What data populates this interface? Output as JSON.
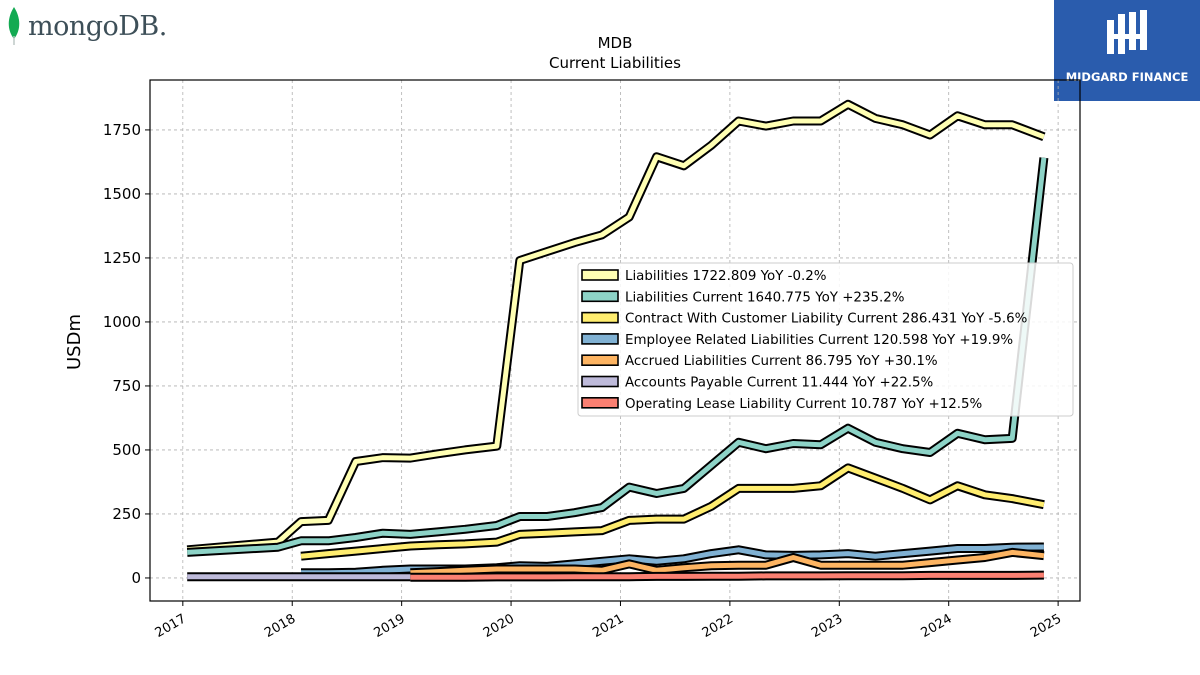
{
  "branding": {
    "left_logo_text": "mongoDB.",
    "right_logo_text": "MIDGARD FINANCE"
  },
  "colors": {
    "Liabilities": "#ffffb3",
    "Liabilities Current": "#8dd3c7",
    "Contract With Customer Liability Current": "#ffed6f",
    "Employee Related Liabilities Current": "#80b1d3",
    "Accrued Liabilities Current": "#fdb462",
    "Accounts Payable Current": "#bebada",
    "Operating Lease Liability Current": "#fb8072"
  },
  "chart_data": {
    "type": "line",
    "title": "MDB",
    "subtitle": "Current  Liabilities",
    "ylabel": "USDm",
    "xlabel": "",
    "xlim": [
      2016.7,
      2025.2
    ],
    "ylim": [
      -90,
      1945
    ],
    "x_ticks": [
      "2017",
      "2018",
      "2019",
      "2020",
      "2021",
      "2022",
      "2023",
      "2024",
      "2025"
    ],
    "y_ticks": [
      "0",
      "250",
      "500",
      "750",
      "1000",
      "1250",
      "1500",
      "1750"
    ],
    "grid": true,
    "legend_position": "center-right",
    "series": [
      {
        "name": "Liabilities",
        "legend": "Liabilities  1722.809 YoY -0.2%",
        "x": [
          2017.04,
          2017.87,
          2018.08,
          2018.33,
          2018.58,
          2018.83,
          2019.08,
          2019.33,
          2019.58,
          2019.87,
          2020.08,
          2020.33,
          2020.58,
          2020.83,
          2021.08,
          2021.33,
          2021.58,
          2021.83,
          2022.08,
          2022.33,
          2022.58,
          2022.83,
          2023.08,
          2023.33,
          2023.58,
          2023.83,
          2024.08,
          2024.33,
          2024.58,
          2024.87
        ],
        "values": [
          110,
          140,
          220,
          225,
          455,
          470,
          468,
          485,
          500,
          515,
          1240,
          1275,
          1310,
          1340,
          1410,
          1645,
          1610,
          1690,
          1785,
          1765,
          1785,
          1785,
          1850,
          1795,
          1770,
          1730,
          1805,
          1770,
          1770,
          1723
        ]
      },
      {
        "name": "Liabilities Current",
        "legend": "Liabilities Current  1640.775 YoY +235.2%",
        "x": [
          2017.04,
          2017.87,
          2018.08,
          2018.33,
          2018.58,
          2018.83,
          2019.08,
          2019.33,
          2019.58,
          2019.87,
          2020.08,
          2020.33,
          2020.58,
          2020.83,
          2021.08,
          2021.33,
          2021.58,
          2021.83,
          2022.08,
          2022.33,
          2022.58,
          2022.83,
          2023.08,
          2023.33,
          2023.58,
          2023.83,
          2024.08,
          2024.33,
          2024.58,
          2024.87
        ],
        "values": [
          100,
          120,
          145,
          145,
          158,
          175,
          170,
          180,
          190,
          205,
          240,
          240,
          255,
          275,
          355,
          330,
          350,
          440,
          530,
          505,
          525,
          520,
          585,
          530,
          505,
          490,
          565,
          540,
          545,
          1641
        ]
      },
      {
        "name": "Contract With Customer Liability Current",
        "legend": "Contract With Customer Liability Current  286.431 YoY -5.6%",
        "x": [
          2018.08,
          2018.33,
          2018.58,
          2018.83,
          2019.08,
          2019.33,
          2019.58,
          2019.87,
          2020.08,
          2020.33,
          2020.58,
          2020.83,
          2021.08,
          2021.33,
          2021.58,
          2021.83,
          2022.08,
          2022.33,
          2022.58,
          2022.83,
          2023.08,
          2023.33,
          2023.58,
          2023.83,
          2024.08,
          2024.33,
          2024.58,
          2024.87
        ],
        "values": [
          85,
          95,
          105,
          115,
          125,
          130,
          133,
          140,
          170,
          175,
          180,
          185,
          225,
          230,
          230,
          280,
          350,
          350,
          350,
          360,
          430,
          390,
          350,
          305,
          360,
          325,
          310,
          286
        ]
      },
      {
        "name": "Employee Related Liabilities Current",
        "legend": "Employee Related Liabilities Current  120.598 YoY +19.9%",
        "x": [
          2018.08,
          2018.33,
          2018.58,
          2018.83,
          2019.08,
          2019.33,
          2019.58,
          2019.87,
          2020.08,
          2020.33,
          2020.58,
          2020.83,
          2021.08,
          2021.33,
          2021.58,
          2021.83,
          2022.08,
          2022.33,
          2022.58,
          2022.83,
          2023.08,
          2023.33,
          2023.58,
          2023.83,
          2024.08,
          2024.33,
          2024.58,
          2024.87
        ],
        "values": [
          20,
          20,
          22,
          30,
          35,
          35,
          35,
          40,
          48,
          45,
          55,
          65,
          75,
          65,
          75,
          95,
          110,
          90,
          88,
          90,
          95,
          85,
          95,
          105,
          115,
          115,
          120,
          121
        ]
      },
      {
        "name": "Accrued Liabilities Current",
        "legend": "Accrued Liabilities Current  86.795 YoY +30.1%",
        "x": [
          2019.08,
          2019.33,
          2019.58,
          2019.87,
          2020.08,
          2020.33,
          2020.58,
          2020.83,
          2021.08,
          2021.33,
          2021.58,
          2021.83,
          2022.08,
          2022.33,
          2022.58,
          2022.83,
          2023.08,
          2023.33,
          2023.58,
          2023.83,
          2024.08,
          2024.33,
          2024.58,
          2024.87
        ],
        "values": [
          20,
          25,
          30,
          35,
          35,
          35,
          35,
          30,
          55,
          30,
          40,
          48,
          50,
          50,
          80,
          50,
          50,
          50,
          50,
          60,
          70,
          80,
          100,
          87
        ]
      },
      {
        "name": "Accounts Payable Current",
        "legend": "Accounts Payable Current  11.444 YoY +22.5%",
        "x": [
          2017.04,
          2017.87,
          2018.08,
          2018.33,
          2018.58,
          2018.83,
          2019.08
        ],
        "values": [
          5,
          5,
          5,
          5,
          5,
          5,
          5
        ]
      },
      {
        "name": "Operating Lease Liability Current",
        "legend": "Operating Lease Liability Current  10.787 YoY +12.5%",
        "x": [
          2019.08,
          2019.33,
          2019.58,
          2019.87,
          2020.08,
          2020.33,
          2020.58,
          2020.83,
          2021.08,
          2021.33,
          2021.58,
          2021.83,
          2022.08,
          2022.33,
          2022.58,
          2022.83,
          2023.08,
          2023.33,
          2023.58,
          2023.83,
          2024.08,
          2024.33,
          2024.58,
          2024.87
        ],
        "values": [
          3,
          3,
          3,
          4,
          4,
          4,
          5,
          5,
          5,
          6,
          6,
          7,
          7,
          8,
          8,
          8,
          9,
          9,
          9,
          10,
          10,
          10,
          10,
          11
        ]
      }
    ]
  }
}
